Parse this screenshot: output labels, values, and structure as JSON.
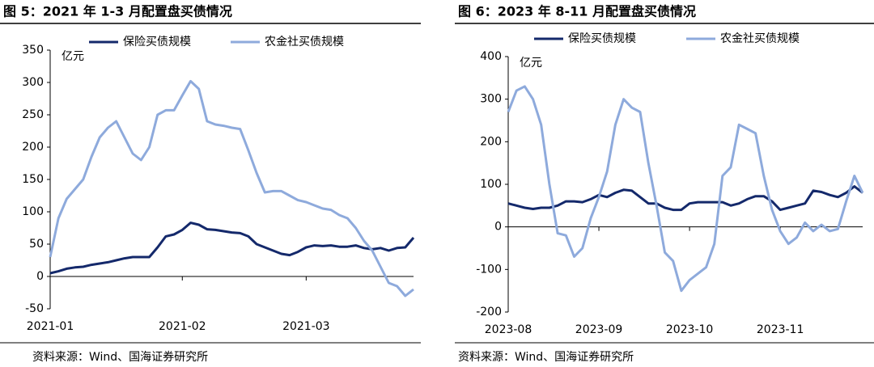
{
  "chart_data": [
    {
      "type": "line",
      "title": "图 5：2021 年 1-3 月配置盘买债情况",
      "ylabel": "亿元",
      "source": "资料来源：Wind、国海证券研究所",
      "categories": [
        "2021-01",
        null,
        null,
        null,
        null,
        null,
        null,
        null,
        null,
        null,
        null,
        null,
        null,
        null,
        null,
        null,
        "2021-02",
        null,
        null,
        null,
        null,
        null,
        null,
        null,
        null,
        null,
        null,
        null,
        null,
        null,
        null,
        "2021-03",
        null,
        null,
        null,
        null,
        null,
        null,
        null,
        null,
        null,
        null,
        null,
        null,
        null
      ],
      "ylim": [
        -50,
        350
      ],
      "yticks": [
        -50,
        0,
        50,
        100,
        150,
        200,
        250,
        300,
        350
      ],
      "legend": "top",
      "series": [
        {
          "name": "保险买债规模",
          "color": "#14296b",
          "values": [
            5,
            8,
            12,
            14,
            15,
            18,
            20,
            22,
            25,
            28,
            30,
            30,
            30,
            45,
            62,
            65,
            72,
            83,
            80,
            73,
            72,
            70,
            68,
            67,
            62,
            50,
            45,
            40,
            35,
            33,
            38,
            45,
            48,
            47,
            48,
            46,
            46,
            48,
            44,
            42,
            44,
            40,
            44,
            45,
            60
          ]
        },
        {
          "name": "农金社买债规模",
          "color": "#8eaadc",
          "values": [
            30,
            90,
            120,
            135,
            150,
            185,
            215,
            230,
            240,
            215,
            190,
            180,
            200,
            250,
            257,
            257,
            280,
            302,
            290,
            240,
            235,
            233,
            230,
            228,
            195,
            160,
            130,
            132,
            132,
            125,
            118,
            115,
            110,
            105,
            103,
            95,
            90,
            75,
            55,
            40,
            15,
            -10,
            -15,
            -30,
            -20
          ]
        }
      ]
    },
    {
      "type": "line",
      "title": "图 6：2023 年 8-11 月配置盘买债情况",
      "ylabel": "亿元",
      "source": "资料来源：Wind、国海证券研究所",
      "categories": [
        "2023-08",
        null,
        null,
        null,
        null,
        null,
        null,
        null,
        null,
        null,
        null,
        "2023-09",
        null,
        null,
        null,
        null,
        null,
        null,
        null,
        null,
        null,
        null,
        "2023-10",
        null,
        null,
        null,
        null,
        null,
        null,
        null,
        null,
        null,
        null,
        "2023-11",
        null,
        null,
        null,
        null,
        null,
        null,
        null,
        null,
        null,
        null
      ],
      "ylim": [
        -200,
        400
      ],
      "yticks": [
        -200,
        -100,
        0,
        100,
        200,
        300,
        400
      ],
      "legend": "top",
      "series": [
        {
          "name": "保险买债规模",
          "color": "#14296b",
          "values": [
            55,
            50,
            45,
            42,
            45,
            45,
            50,
            60,
            60,
            58,
            65,
            75,
            70,
            80,
            87,
            85,
            70,
            55,
            55,
            45,
            40,
            40,
            55,
            58,
            58,
            58,
            58,
            50,
            55,
            65,
            72,
            72,
            60,
            40,
            45,
            50,
            55,
            85,
            82,
            75,
            70,
            80,
            95,
            80
          ]
        },
        {
          "name": "农金社买债规模",
          "color": "#8eaadc",
          "values": [
            270,
            320,
            330,
            300,
            240,
            100,
            -15,
            -20,
            -70,
            -50,
            20,
            70,
            130,
            240,
            300,
            280,
            270,
            150,
            50,
            -60,
            -80,
            -150,
            -125,
            -110,
            -95,
            -40,
            120,
            140,
            240,
            230,
            220,
            120,
            40,
            -10,
            -40,
            -25,
            10,
            -10,
            5,
            -10,
            -5,
            60,
            120,
            80
          ]
        }
      ]
    }
  ]
}
